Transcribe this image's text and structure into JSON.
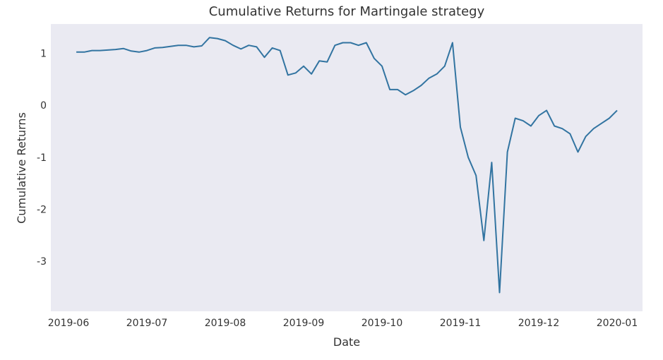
{
  "chart_data": {
    "type": "line",
    "title": "Cumulative Returns for Martingale strategy",
    "x_label": "Date",
    "y_label": "Cumulative Returns",
    "categories": [
      "2019-06",
      null,
      null,
      null,
      null,
      null,
      null,
      null,
      null,
      null,
      "2019-07",
      null,
      null,
      null,
      null,
      null,
      null,
      null,
      null,
      null,
      "2019-08",
      null,
      null,
      null,
      null,
      null,
      null,
      null,
      null,
      null,
      "2019-09",
      null,
      null,
      null,
      null,
      null,
      null,
      null,
      null,
      null,
      "2019-10",
      null,
      null,
      null,
      null,
      null,
      null,
      null,
      null,
      null,
      "2019-11",
      null,
      null,
      null,
      null,
      null,
      null,
      null,
      null,
      null,
      "2019-12",
      null,
      null,
      null,
      null,
      null,
      null,
      null,
      null,
      null,
      "2020-01"
    ],
    "series": [
      {
        "name": "Cumulative Returns",
        "color": "#3274a1",
        "values": [
          null,
          1.02,
          1.02,
          1.05,
          1.05,
          1.06,
          1.07,
          1.09,
          1.04,
          1.02,
          1.05,
          1.1,
          1.11,
          1.13,
          1.15,
          1.15,
          1.12,
          1.14,
          1.3,
          1.28,
          1.24,
          1.15,
          1.08,
          1.15,
          1.12,
          0.92,
          1.1,
          1.05,
          0.58,
          0.62,
          0.75,
          0.6,
          0.85,
          0.83,
          1.15,
          1.2,
          1.2,
          1.15,
          1.2,
          0.9,
          0.75,
          0.3,
          0.3,
          0.2,
          0.28,
          0.38,
          0.52,
          0.6,
          0.75,
          1.2,
          -0.42,
          -1.0,
          -1.35,
          -2.6,
          -1.1,
          -3.6,
          -0.9,
          -0.25,
          -0.3,
          -0.4,
          -0.2,
          -0.1,
          -0.4,
          -0.45,
          -0.55,
          -0.9,
          -0.6,
          -0.45,
          -0.35,
          -0.25,
          -0.1
        ]
      }
    ],
    "ylim": [
      -3.96,
      1.56
    ],
    "yticks": [
      -3,
      -2,
      -1,
      0,
      1
    ],
    "grid": false
  }
}
